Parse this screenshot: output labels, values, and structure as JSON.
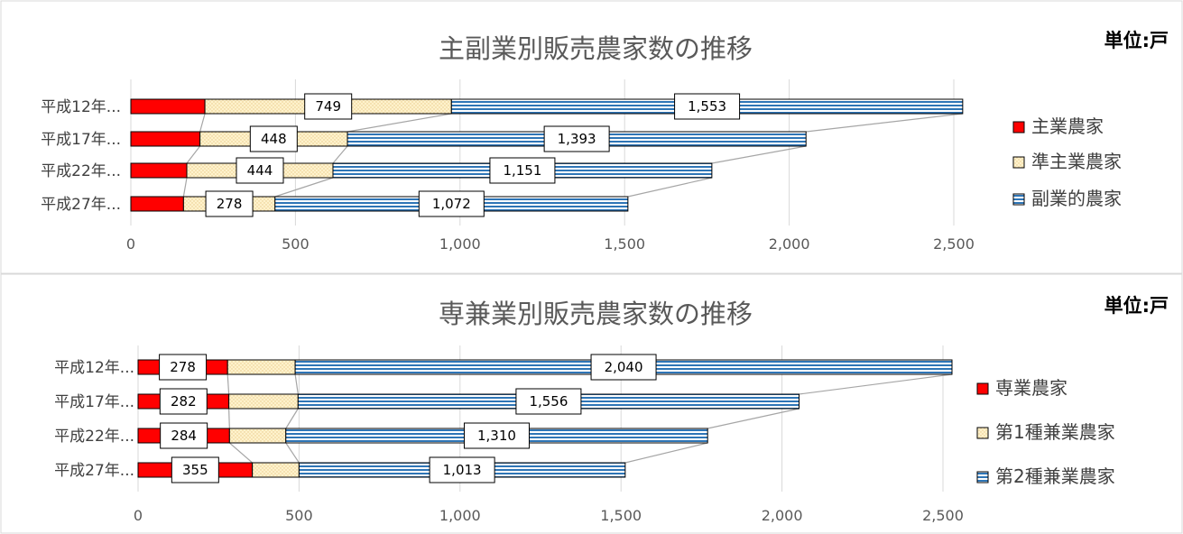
{
  "charts": [
    {
      "chart_data": {
        "type": "bar",
        "orientation": "horizontal",
        "stacked": true,
        "title": "主副業別販売農家数の推移",
        "unit": "単位:戸",
        "categories": [
          "平成12年...",
          "平成17年...",
          "平成22年...",
          "平成27年..."
        ],
        "series": [
          {
            "name": "主業農家",
            "values": [
              225,
              210,
              170,
              160
            ],
            "color": "#ff0000",
            "label_shown": false
          },
          {
            "name": "準主業農家",
            "values": [
              749,
              448,
              444,
              278
            ],
            "color": "#fff2cc",
            "label_shown": true
          },
          {
            "name": "副業的農家",
            "values": [
              1553,
              1393,
              1151,
              1072
            ],
            "color": "#2e75b6",
            "label_shown": true
          }
        ],
        "xlim": [
          0,
          2500
        ],
        "xticks": [
          "0",
          "500",
          "1,000",
          "1,500",
          "2,000",
          "2,500"
        ],
        "xtick_values": [
          0,
          500,
          1000,
          1500,
          2000,
          2500
        ],
        "grid": true,
        "series_lines": true,
        "legend_position": "right"
      }
    },
    {
      "chart_data": {
        "type": "bar",
        "orientation": "horizontal",
        "stacked": true,
        "title": "専兼業別販売農家数の推移",
        "unit": "単位:戸",
        "categories": [
          "平成12年...",
          "平成17年...",
          "平成22年...",
          "平成27年..."
        ],
        "series": [
          {
            "name": "専業農家",
            "values": [
              278,
              282,
              284,
              355
            ],
            "color": "#ff0000",
            "label_shown": true
          },
          {
            "name": "第1種兼業農家",
            "values": [
              210,
              215,
              175,
              145
            ],
            "color": "#fff2cc",
            "label_shown": false
          },
          {
            "name": "第2種兼業農家",
            "values": [
              2040,
              1556,
              1310,
              1013
            ],
            "color": "#2e75b6",
            "label_shown": true
          }
        ],
        "xlim": [
          0,
          2500
        ],
        "xticks": [
          "0",
          "500",
          "1,000",
          "1,500",
          "2,000",
          "2,500"
        ],
        "xtick_values": [
          0,
          500,
          1000,
          1500,
          2000,
          2500
        ],
        "grid": true,
        "series_lines": true,
        "legend_position": "right"
      }
    }
  ]
}
